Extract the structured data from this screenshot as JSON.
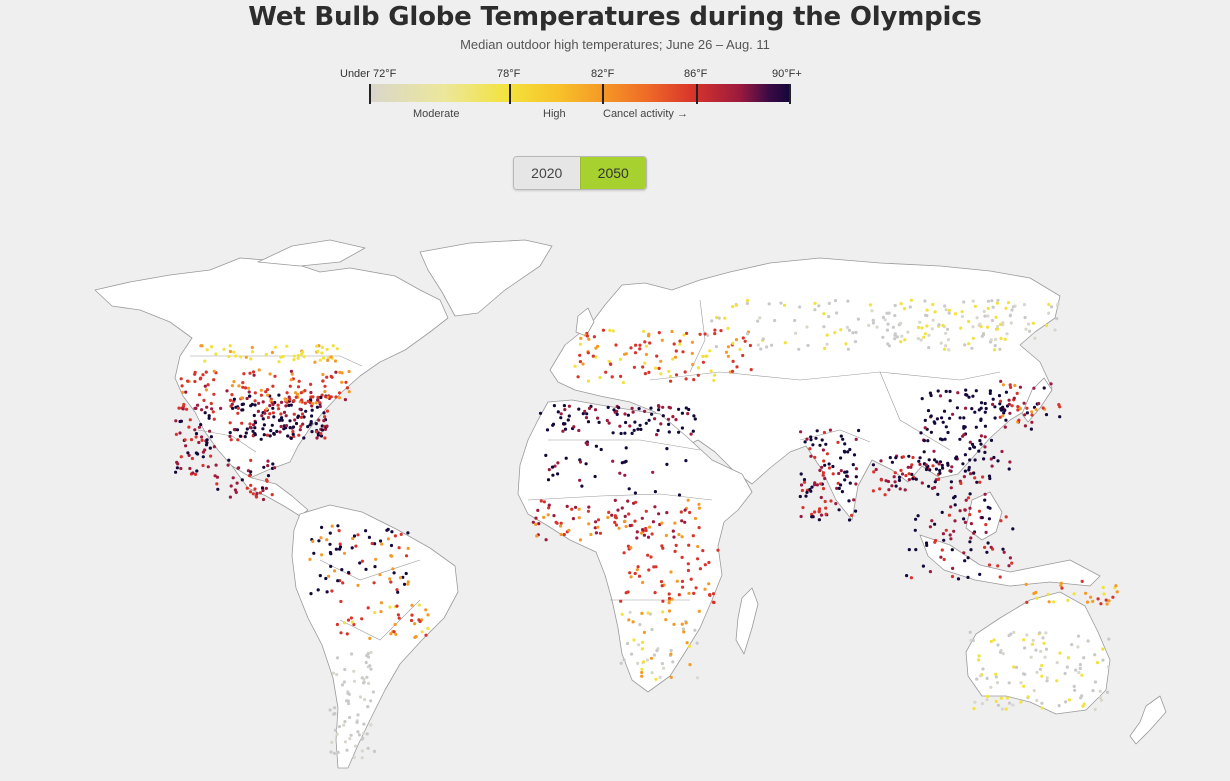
{
  "header": {
    "title": "Wet Bulb Globe Temperatures during the Olympics",
    "subtitle": "Median outdoor high temperatures; June 26 – Aug. 11"
  },
  "legend": {
    "ticks": [
      "Under 72°F",
      "78°F",
      "82°F",
      "86°F",
      "90°F+"
    ],
    "categories": [
      "Moderate",
      "High",
      "Cancel activity →"
    ],
    "colors": [
      "#d9d6cc",
      "#f3e23c",
      "#f59a26",
      "#d8342b",
      "#9c1a3d",
      "#14073a"
    ]
  },
  "toggle": {
    "options": [
      "2020",
      "2050"
    ],
    "selected": "2050",
    "active_color": "#a6d12f"
  },
  "map": {
    "land_color": "#ffffff",
    "border_color": "#9a9a9a",
    "no_data_color": "#c9c9c9"
  }
}
